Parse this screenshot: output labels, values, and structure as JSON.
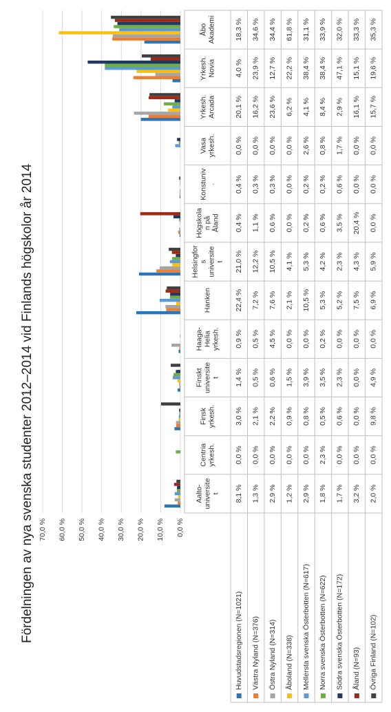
{
  "chart_data": {
    "type": "bar",
    "title": "Fördelningen av nya svenska studenter 2012–2014 vid Finlands högskolor år 2014",
    "categories": [
      [
        "Aalto-",
        "universite",
        "t"
      ],
      [
        "Centria",
        "yrkesh."
      ],
      [
        "Finsk",
        "yrkesh."
      ],
      [
        "Finskt",
        "universite",
        "t"
      ],
      [
        "Haaga-",
        "Helia",
        "yrkesh."
      ],
      [
        "Hanken"
      ],
      [
        "Helsingfor",
        "s",
        "universite",
        "t"
      ],
      [
        "Högskola",
        "n på",
        "Åland"
      ],
      [
        "Konstuniv",
        "."
      ],
      [
        "Vasa",
        "yrkesh."
      ],
      [
        "Yrkesh.",
        "Arcada"
      ],
      [
        "Yrkesh.",
        "Novia"
      ],
      [
        "Åbo",
        "Akademi"
      ]
    ],
    "series": [
      {
        "name": "Huvudstadsregionen (N=1021)",
        "color": "#2e75b6",
        "values": [
          8.1,
          0.0,
          3.0,
          1.4,
          0.9,
          22.4,
          21.0,
          0.4,
          0.4,
          0.0,
          20.1,
          4.0,
          18.3
        ],
        "value_labels": [
          "8,1 %",
          "0,0 %",
          "3,0 %",
          "1,4 %",
          "0,9 %",
          "22,4 %",
          "21,0 %",
          "0,4 %",
          "0,4 %",
          "0,0 %",
          "20,1 %",
          "4,0 %",
          "18,3 %"
        ]
      },
      {
        "name": "Västra Nyland (N=376)",
        "color": "#ed7d31",
        "values": [
          1.3,
          0.0,
          2.1,
          0.5,
          0.5,
          7.2,
          12.2,
          1.1,
          0.3,
          0.0,
          16.2,
          23.9,
          34.6
        ],
        "value_labels": [
          "1,3 %",
          "0,0 %",
          "2,1 %",
          "0,5 %",
          "0,5 %",
          "7,2 %",
          "12,2 %",
          "1,1 %",
          "0,3 %",
          "0,0 %",
          "16,2 %",
          "23,9 %",
          "34,6 %"
        ]
      },
      {
        "name": "Östra Nyland (N=314)",
        "color": "#a5a5a5",
        "values": [
          2.9,
          0.0,
          2.2,
          0.6,
          4.5,
          7.6,
          10.5,
          0.6,
          0.3,
          0.0,
          23.6,
          12.7,
          34.4
        ],
        "value_labels": [
          "2,9 %",
          "0,0 %",
          "2,2 %",
          "0,6 %",
          "4,5 %",
          "7,6 %",
          "10,5 %",
          "0,6 %",
          "0,3 %",
          "0,0 %",
          "23,6 %",
          "12,7 %",
          "34,4 %"
        ]
      },
      {
        "name": "Åboland (N=338)",
        "color": "#ffc000",
        "values": [
          1.2,
          0.0,
          0.9,
          1.5,
          0.0,
          2.1,
          4.1,
          0.0,
          0.0,
          0.0,
          6.2,
          22.2,
          61.8
        ],
        "value_labels": [
          "1,2 %",
          "0,0 %",
          "0,9 %",
          "1,5 %",
          "0,0 %",
          "2,1 %",
          "4,1 %",
          "0,0 %",
          "0,0 %",
          "0,0 %",
          "6,2 %",
          "22,2 %",
          "61,8 %"
        ]
      },
      {
        "name": "Mellersta svenska Österbotten (N=617)",
        "color": "#5b9bd5",
        "values": [
          2.9,
          0.0,
          0.8,
          3.9,
          0.0,
          10.5,
          5.3,
          0.2,
          0.2,
          2.6,
          4.1,
          38.4,
          31.1
        ],
        "value_labels": [
          "2,9 %",
          "0,0 %",
          "0,8 %",
          "3,9 %",
          "0,0 %",
          "10,5 %",
          "5,3 %",
          "0,2 %",
          "0,2 %",
          "2,6 %",
          "4,1 %",
          "38,4 %",
          "31,1 %"
        ]
      },
      {
        "name": "Norra svenska Österbotten (N=622)",
        "color": "#70ad47",
        "values": [
          1.8,
          2.3,
          0.5,
          3.5,
          0.2,
          5.3,
          4.2,
          0.6,
          0.2,
          0.8,
          8.4,
          38.4,
          33.9
        ],
        "value_labels": [
          "1,8 %",
          "2,3 %",
          "0,5 %",
          "3,5 %",
          "0,2 %",
          "5,3 %",
          "4,2 %",
          "0,6 %",
          "0,2 %",
          "0,8 %",
          "8,4 %",
          "38,4 %",
          "33,9 %"
        ]
      },
      {
        "name": "Södra svenska Österbotten (N=172)",
        "color": "#1f3864",
        "values": [
          1.7,
          0.0,
          0.6,
          2.3,
          0.0,
          5.2,
          2.3,
          3.5,
          0.6,
          1.7,
          2.9,
          47.1,
          32.0
        ],
        "value_labels": [
          "1,7 %",
          "0,0 %",
          "0,6 %",
          "2,3 %",
          "0,0 %",
          "5,2 %",
          "2,3 %",
          "3,5 %",
          "0,6 %",
          "1,7 %",
          "2,9 %",
          "47,1 %",
          "32,0 %"
        ]
      },
      {
        "name": "Åland (N=93)",
        "color": "#9e2a16",
        "values": [
          3.2,
          0.0,
          0.0,
          0.0,
          0.0,
          7.5,
          4.3,
          20.4,
          0.0,
          0.0,
          16.1,
          15.1,
          33.3
        ],
        "value_labels": [
          "3,2 %",
          "0,0 %",
          "0,0 %",
          "0,0 %",
          "0,0 %",
          "7,5 %",
          "4,3 %",
          "20,4 %",
          "0,0 %",
          "0,0 %",
          "16,1 %",
          "15,1 %",
          "33,3 %"
        ]
      },
      {
        "name": "Övriga Finland (N=102)",
        "color": "#404040",
        "values": [
          2.0,
          0.0,
          9.8,
          4.9,
          0.0,
          6.9,
          5.9,
          0.0,
          0.0,
          0.0,
          15.7,
          19.6,
          35.3
        ],
        "value_labels": [
          "2,0 %",
          "0,0 %",
          "9,8 %",
          "4,9 %",
          "0,0 %",
          "6,9 %",
          "5,9 %",
          "0,0 %",
          "0,0 %",
          "0,0 %",
          "15,7 %",
          "19,6 %",
          "35,3 %"
        ]
      }
    ],
    "ylim": [
      0,
      70
    ],
    "yticks": [
      {
        "value": 0,
        "label": "0,0 %"
      },
      {
        "value": 10,
        "label": "10,0 %"
      },
      {
        "value": 20,
        "label": "20,0 %"
      },
      {
        "value": 30,
        "label": "30,0 %"
      },
      {
        "value": 40,
        "label": "40,0 %"
      },
      {
        "value": 50,
        "label": "50,0 %"
      },
      {
        "value": 60,
        "label": "60,0 %"
      },
      {
        "value": 70,
        "label": "70,0 %"
      }
    ],
    "grid": true
  }
}
